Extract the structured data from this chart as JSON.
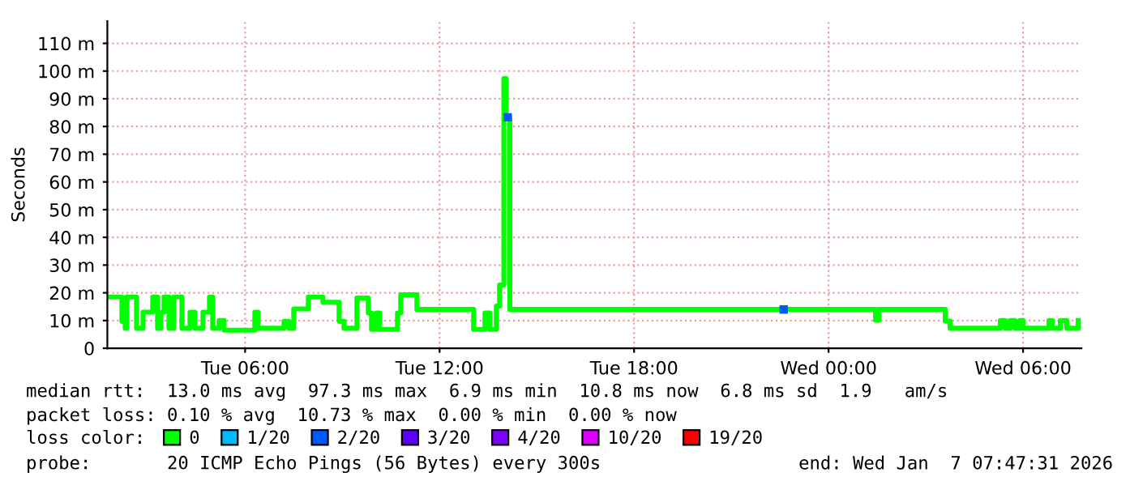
{
  "chart_data": {
    "type": "step",
    "ylabel": "Seconds",
    "legend_title": "loss color:",
    "legend": "bottom",
    "grid": true,
    "line_style": "solid",
    "marker": "none",
    "xlim": [
      "2026-01-06T01:45",
      "2026-01-07T07:48"
    ],
    "xticks": [
      {
        "value": "2026-01-06T06:00",
        "label": "Tue 06:00"
      },
      {
        "value": "2026-01-06T12:00",
        "label": "Tue 12:00"
      },
      {
        "value": "2026-01-06T18:00",
        "label": "Tue 18:00"
      },
      {
        "value": "2026-01-07T00:00",
        "label": "Wed 00:00"
      },
      {
        "value": "2026-01-07T06:00",
        "label": "Wed 06:00"
      }
    ],
    "ylim": [
      0,
      118
    ],
    "yticks": [
      0,
      {
        "value": 10,
        "label": "10 m"
      },
      {
        "value": 20,
        "label": "20 m"
      },
      {
        "value": 30,
        "label": "30 m"
      },
      {
        "value": 40,
        "label": "40 m"
      },
      {
        "value": 50,
        "label": "50 m"
      },
      {
        "value": 60,
        "label": "60 m"
      },
      {
        "value": 70,
        "label": "70 m"
      },
      {
        "value": 80,
        "label": "80 m"
      },
      {
        "value": 90,
        "label": "90 m"
      },
      {
        "value": 100,
        "label": "100 m"
      },
      {
        "value": 110,
        "label": "110 m"
      }
    ],
    "series": [
      {
        "name": "0",
        "color": "#00ff00",
        "x": [
          "2026-01-06T01:48",
          "2026-01-06T02:12",
          "2026-01-06T02:18",
          "2026-01-06T02:21",
          "2026-01-06T02:39",
          "2026-01-06T02:51",
          "2026-01-06T03:09",
          "2026-01-06T03:18",
          "2026-01-06T03:24",
          "2026-01-06T03:30",
          "2026-01-06T03:39",
          "2026-01-06T03:48",
          "2026-01-06T04:03",
          "2026-01-06T04:18",
          "2026-01-06T04:27",
          "2026-01-06T04:42",
          "2026-01-06T04:54",
          "2026-01-06T05:00",
          "2026-01-06T05:12",
          "2026-01-06T05:21",
          "2026-01-06T06:18",
          "2026-01-06T06:24",
          "2026-01-06T07:12",
          "2026-01-06T07:21",
          "2026-01-06T07:30",
          "2026-01-06T07:57",
          "2026-01-06T08:24",
          "2026-01-06T08:54",
          "2026-01-06T09:03",
          "2026-01-06T09:27",
          "2026-01-06T09:48",
          "2026-01-06T09:54",
          "2026-01-06T10:03",
          "2026-01-06T10:09",
          "2026-01-06T10:42",
          "2026-01-06T10:48",
          "2026-01-06T11:18",
          "2026-01-06T13:03",
          "2026-01-06T13:24",
          "2026-01-06T13:33",
          "2026-01-06T13:45",
          "2026-01-06T13:51",
          "2026-01-06T13:59",
          "2026-01-06T14:03",
          "2026-01-06T14:10",
          "2026-01-06T16:00",
          "2026-01-06T18:00",
          "2026-01-06T20:00",
          "2026-01-06T22:33",
          "2026-01-06T22:42",
          "2026-01-07T00:00",
          "2026-01-07T01:27",
          "2026-01-07T01:33",
          "2026-01-07T03:36",
          "2026-01-07T03:45",
          "2026-01-07T05:18",
          "2026-01-07T05:27",
          "2026-01-07T05:36",
          "2026-01-07T05:45",
          "2026-01-07T05:54",
          "2026-01-07T06:00",
          "2026-01-07T06:48",
          "2026-01-07T06:54",
          "2026-01-07T07:09",
          "2026-01-07T07:21",
          "2026-01-07T07:42"
        ],
        "values": [
          18.5,
          9.7,
          7.2,
          18.5,
          7.2,
          13,
          18.5,
          7.2,
          13,
          18.5,
          7.2,
          18.5,
          7.2,
          13,
          7.2,
          13,
          18.5,
          7.2,
          10,
          6.5,
          13,
          7.2,
          9.7,
          7.2,
          14.2,
          18.5,
          16.6,
          9.7,
          7.2,
          18.1,
          12.7,
          6.8,
          12.7,
          6.8,
          12.7,
          19.3,
          14,
          6.8,
          12.7,
          6.8,
          15.2,
          22.8,
          97.3,
          83.3,
          14,
          14,
          14,
          14,
          14,
          14,
          14,
          10.1,
          14,
          9.8,
          7.2,
          10,
          7.2,
          10,
          7.2,
          10,
          7.2,
          10,
          7.2,
          10,
          7.2,
          10
        ]
      },
      {
        "name": "1/20",
        "color": "#00b8ff"
      },
      {
        "name": "2/20",
        "type": "scatter",
        "marker": "square",
        "color": "#0059ff",
        "x": [
          "2026-01-06T14:06",
          "2026-01-06T22:37"
        ],
        "values": [
          83.3,
          14
        ]
      },
      {
        "name": "3/20",
        "color": "#5e00ff"
      },
      {
        "name": "4/20",
        "color": "#7e00ff"
      },
      {
        "name": "10/20",
        "color": "#dd00ff"
      },
      {
        "name": "19/20",
        "color": "#ff0000"
      }
    ],
    "annotations": [
      "median rtt:  13.0 ms avg  97.3 ms max  6.9 ms min  10.8 ms now  6.8 ms sd  1.9   am/s",
      "packet loss: 0.10 % avg  10.73 % max  0.00 % min  0.00 % now",
      "probe:       20 ICMP Echo Pings (56 Bytes) every 300s",
      "end: Wed Jan  7 07:47:31 2026"
    ]
  }
}
